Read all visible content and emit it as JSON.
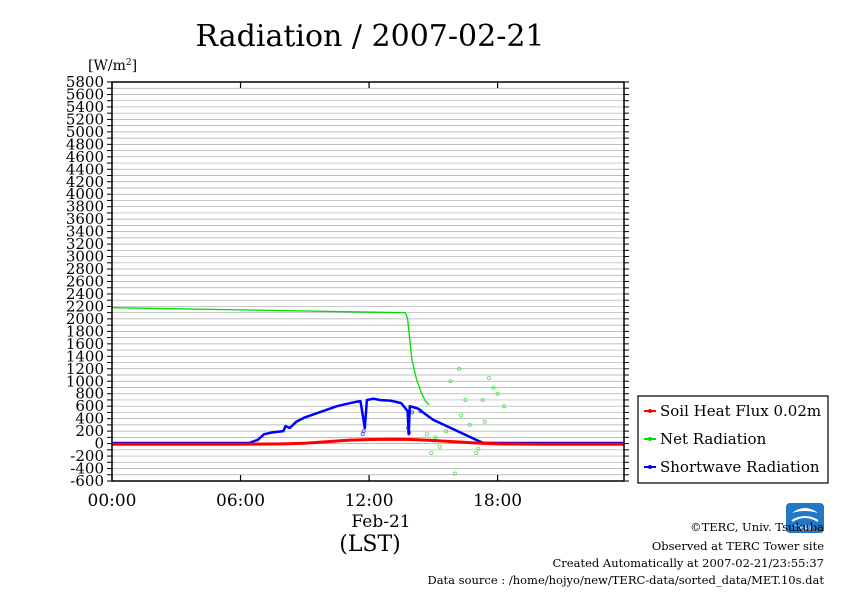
{
  "chart_data": {
    "type": "line",
    "title": "Radiation / 2007-02-21",
    "ylabel_unit": "[W/m",
    "ylabel_unit_sup": "2",
    "ylabel_unit_close": "]",
    "ylim": [
      -600,
      5800
    ],
    "ytick_step": 200,
    "ytick_labels": [
      "5800",
      "5600",
      "5400",
      "5200",
      "5000",
      "4800",
      "4600",
      "4400",
      "4200",
      "4000",
      "3800",
      "3600",
      "3400",
      "3200",
      "3000",
      "2800",
      "2600",
      "2400",
      "2200",
      "2000",
      "1800",
      "1600",
      "1400",
      "1200",
      "1000",
      "800",
      "600",
      "400",
      "200",
      "0",
      "-200",
      "-400",
      "-600"
    ],
    "xlim_hours": [
      0,
      23.9
    ],
    "xtick_labels": [
      "00:00",
      "06:00",
      "12:00",
      "18:00"
    ],
    "xdate_label": "Feb-21",
    "xunit_label": "(LST)",
    "grid": true,
    "legend_position": "right",
    "series": [
      {
        "name": "Soil Heat Flux 0.02m",
        "color": "#ff0000",
        "points": [
          [
            0,
            -10
          ],
          [
            6,
            -10
          ],
          [
            8,
            -5
          ],
          [
            9,
            5
          ],
          [
            10,
            30
          ],
          [
            11,
            55
          ],
          [
            12,
            65
          ],
          [
            13,
            70
          ],
          [
            14,
            65
          ],
          [
            15,
            50
          ],
          [
            16,
            30
          ],
          [
            17,
            10
          ],
          [
            18,
            -5
          ],
          [
            20,
            -10
          ],
          [
            23.9,
            -10
          ]
        ]
      },
      {
        "name": "Net Radiation",
        "color": "#00dd00",
        "points": [
          [
            0,
            2180
          ],
          [
            13.7,
            2100
          ],
          [
            13.8,
            2000
          ],
          [
            14.0,
            1350
          ],
          [
            14.2,
            1050
          ],
          [
            14.4,
            850
          ],
          [
            14.6,
            700
          ],
          [
            14.8,
            620
          ]
        ],
        "scatter": [
          [
            14.7,
            150
          ],
          [
            14.9,
            -150
          ],
          [
            15.1,
            100
          ],
          [
            15.3,
            -50
          ],
          [
            15.6,
            200
          ],
          [
            15.8,
            1000
          ],
          [
            16.0,
            -480
          ],
          [
            16.2,
            1200
          ],
          [
            16.3,
            450
          ],
          [
            16.5,
            700
          ],
          [
            16.7,
            300
          ],
          [
            17.0,
            -150
          ],
          [
            17.1,
            -80
          ],
          [
            17.3,
            700
          ],
          [
            17.4,
            350
          ],
          [
            17.6,
            1050
          ],
          [
            17.8,
            900
          ],
          [
            18.0,
            800
          ],
          [
            18.3,
            600
          ]
        ]
      },
      {
        "name": "Shortwave Radiation",
        "color": "#0000ff",
        "points": [
          [
            0,
            10
          ],
          [
            6.4,
            10
          ],
          [
            6.8,
            60
          ],
          [
            7.1,
            150
          ],
          [
            7.5,
            180
          ],
          [
            8.0,
            200
          ],
          [
            8.1,
            280
          ],
          [
            8.3,
            250
          ],
          [
            8.6,
            350
          ],
          [
            9,
            420
          ],
          [
            9.5,
            480
          ],
          [
            10,
            540
          ],
          [
            10.5,
            600
          ],
          [
            11,
            640
          ],
          [
            11.4,
            670
          ],
          [
            11.6,
            680
          ],
          [
            11.8,
            250
          ],
          [
            11.9,
            700
          ],
          [
            12.2,
            720
          ],
          [
            12.5,
            700
          ],
          [
            13,
            690
          ],
          [
            13.5,
            650
          ],
          [
            13.8,
            520
          ],
          [
            13.85,
            150
          ],
          [
            13.9,
            600
          ],
          [
            14.3,
            560
          ],
          [
            14.6,
            480
          ],
          [
            15,
            380
          ],
          [
            15.5,
            300
          ],
          [
            16,
            220
          ],
          [
            16.5,
            140
          ],
          [
            17,
            60
          ],
          [
            17.3,
            15
          ],
          [
            18,
            10
          ],
          [
            23.9,
            10
          ]
        ],
        "scatter": [
          [
            11.7,
            150
          ],
          [
            11.75,
            200
          ],
          [
            13.82,
            250
          ],
          [
            13.87,
            180
          ],
          [
            14.0,
            500
          ],
          [
            14.4,
            520
          ]
        ]
      }
    ]
  },
  "credits": {
    "copyright": "©TERC, Univ. Tsukuba",
    "observed": "Observed at TERC Tower site",
    "created": "Created Automatically at 2007-02-21/23:55:37",
    "source": "Data source : /home/hojyo/new/TERC-data/sorted_data/MET.10s.dat"
  },
  "logo": {
    "text": "TERC",
    "color": "#1f78c8"
  }
}
